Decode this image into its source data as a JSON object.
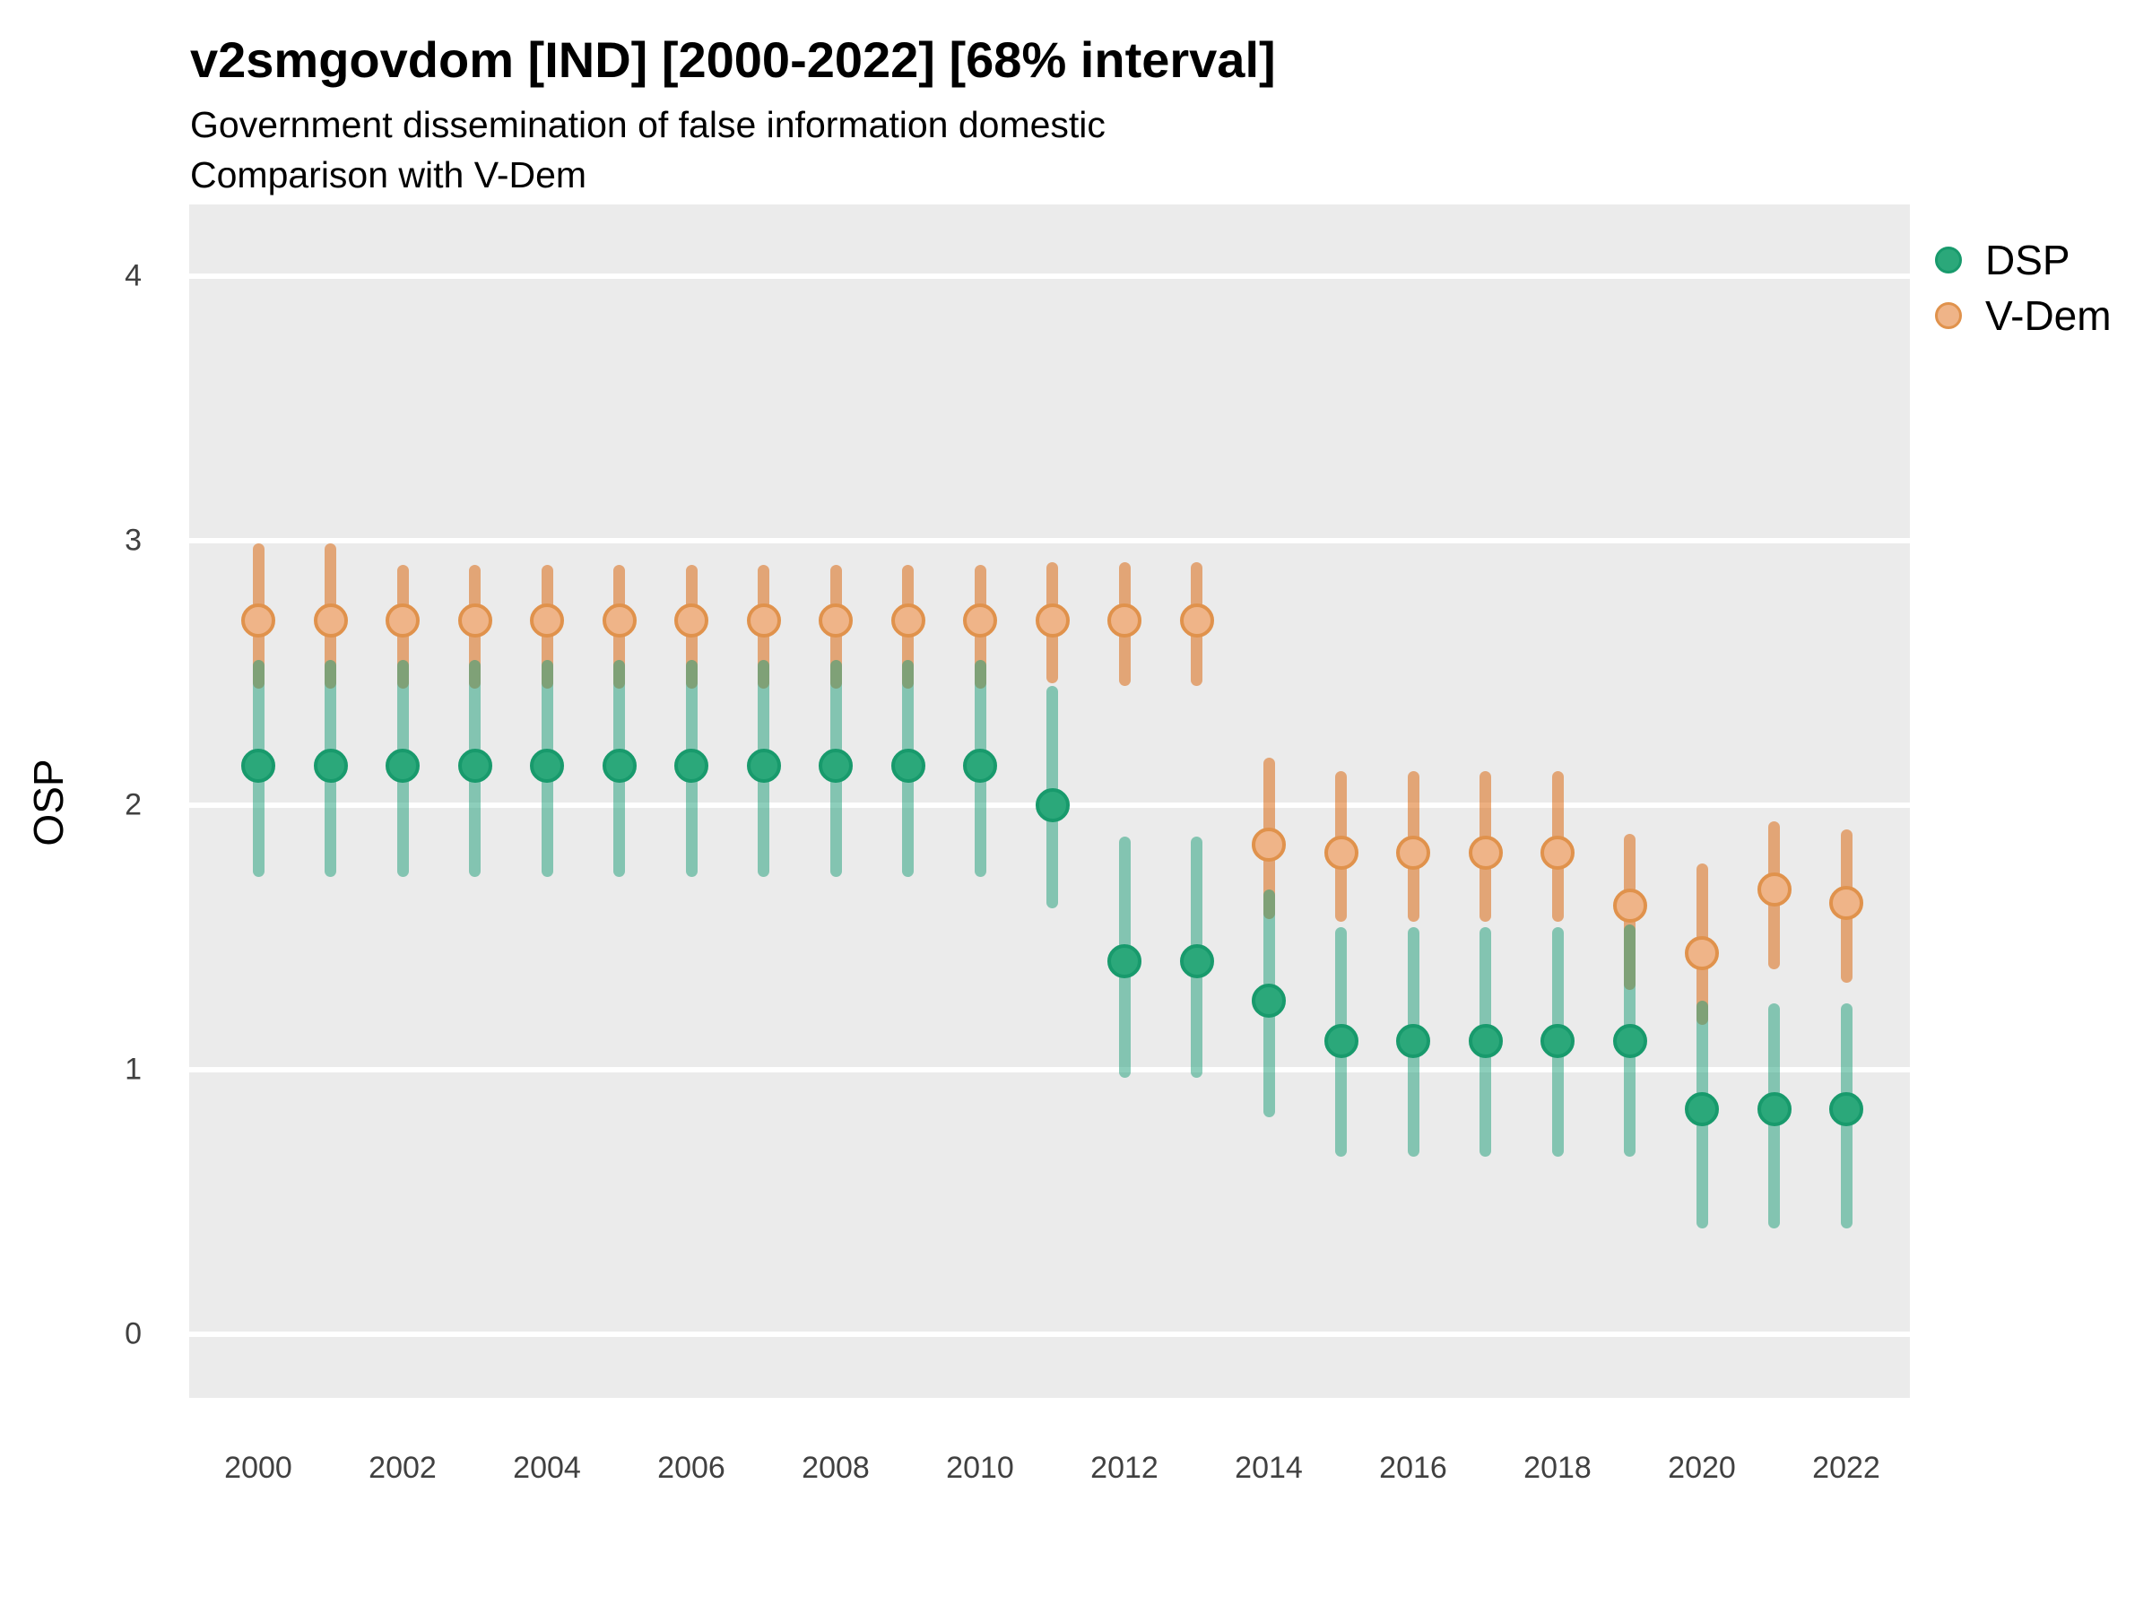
{
  "header": {
    "title": "v2smgovdom [IND] [2000-2022] [68% interval]",
    "subtitle1": "Government dissemination of false information domestic",
    "subtitle2": "Comparison with V-Dem"
  },
  "axes": {
    "y_label": "OSP",
    "y_ticks": [
      4,
      3,
      2,
      1,
      0
    ],
    "x_ticks": [
      2000,
      2002,
      2004,
      2006,
      2008,
      2010,
      2012,
      2014,
      2016,
      2018,
      2020,
      2022
    ]
  },
  "legend": {
    "items": [
      {
        "label": "DSP"
      },
      {
        "label": "V-Dem"
      }
    ]
  },
  "colors": {
    "plot_background": "#ebebeb",
    "gridline": "#ffffff",
    "dsp_point_fill": "#2ba87a",
    "dsp_point_stroke": "#189a6c",
    "dsp_bar": "rgba(27,158,119,0.5)",
    "vdem_point_fill": "#efb488",
    "vdem_point_stroke": "#e0924c",
    "vdem_bar": "rgba(217,95,2,0.5)",
    "tick_text": "#404040"
  },
  "chart_data": {
    "type": "scatter",
    "subtype": "pointrange-error-bars",
    "title": "v2smgovdom [IND] [2000-2022] [68% interval]",
    "xlabel": "",
    "ylabel": "OSP",
    "ylim": [
      0,
      4
    ],
    "interval": "68%",
    "grid": "horizontal-major-only",
    "legend_position": "right",
    "x": [
      2000,
      2001,
      2002,
      2003,
      2004,
      2005,
      2006,
      2007,
      2008,
      2009,
      2010,
      2011,
      2012,
      2013,
      2014,
      2015,
      2016,
      2017,
      2018,
      2019,
      2020,
      2021,
      2022
    ],
    "series": [
      {
        "name": "DSP",
        "values": [
          2.15,
          2.15,
          2.15,
          2.15,
          2.15,
          2.15,
          2.15,
          2.15,
          2.15,
          2.15,
          2.15,
          2.0,
          1.41,
          1.41,
          1.26,
          1.11,
          1.11,
          1.11,
          1.11,
          1.11,
          0.85,
          0.85,
          0.85
        ],
        "lower": [
          1.73,
          1.73,
          1.73,
          1.73,
          1.73,
          1.73,
          1.73,
          1.73,
          1.73,
          1.73,
          1.73,
          1.61,
          0.97,
          0.97,
          0.82,
          0.67,
          0.67,
          0.67,
          0.67,
          0.67,
          0.4,
          0.4,
          0.4
        ],
        "upper": [
          2.55,
          2.55,
          2.55,
          2.55,
          2.55,
          2.55,
          2.55,
          2.55,
          2.55,
          2.55,
          2.55,
          2.45,
          1.88,
          1.88,
          1.68,
          1.54,
          1.54,
          1.54,
          1.54,
          1.55,
          1.26,
          1.25,
          1.25
        ]
      },
      {
        "name": "V-Dem",
        "values": [
          2.7,
          2.7,
          2.7,
          2.7,
          2.7,
          2.7,
          2.7,
          2.7,
          2.7,
          2.7,
          2.7,
          2.7,
          2.7,
          2.7,
          1.85,
          1.82,
          1.82,
          1.82,
          1.82,
          1.62,
          1.44,
          1.68,
          1.63
        ],
        "lower": [
          2.44,
          2.44,
          2.44,
          2.44,
          2.44,
          2.44,
          2.44,
          2.44,
          2.44,
          2.44,
          2.44,
          2.46,
          2.45,
          2.45,
          1.57,
          1.56,
          1.56,
          1.56,
          1.56,
          1.3,
          1.17,
          1.38,
          1.33
        ],
        "upper": [
          2.99,
          2.99,
          2.91,
          2.91,
          2.91,
          2.91,
          2.91,
          2.91,
          2.91,
          2.91,
          2.91,
          2.92,
          2.92,
          2.92,
          2.18,
          2.13,
          2.13,
          2.13,
          2.13,
          1.89,
          1.78,
          1.94,
          1.91
        ]
      }
    ]
  }
}
